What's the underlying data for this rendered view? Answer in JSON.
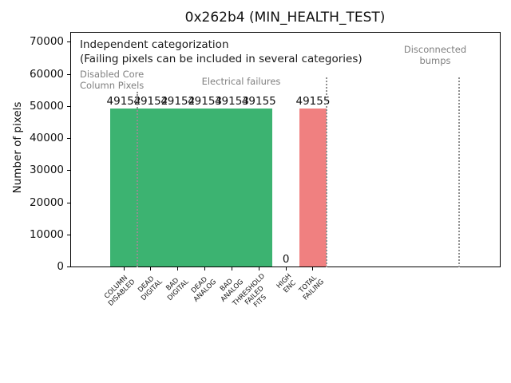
{
  "figure": {
    "background": "#ffffff"
  },
  "colors": {
    "bar_green": "#3cb371",
    "bar_red": "#f08080",
    "annotation_gray": "#808080",
    "separator_gray": "#909090",
    "axis_black": "#000000"
  },
  "chart_data": {
    "type": "bar",
    "title": "0x262b4 (MIN_HEALTH_TEST)",
    "ylabel": "Number of pixels",
    "xlabel": "",
    "ylim": [
      0,
      73300
    ],
    "yticks": [
      0,
      10000,
      20000,
      30000,
      40000,
      50000,
      60000,
      70000
    ],
    "grid": false,
    "legend": null,
    "categories": [
      "COLUMN\nDISABLED",
      "DEAD\nDIGITAL",
      "BAD\nDIGITAL",
      "DEAD\nANALOG",
      "BAD\nANALOG",
      "THRESHOLD\nFAILED\nFITS",
      "HIGH\nENC",
      "TOTAL\nFAILING"
    ],
    "values": [
      49152,
      49152,
      49152,
      49153,
      49153,
      49155,
      0,
      49155
    ],
    "bar_value_labels": [
      "49152",
      "49152",
      "49152",
      "49153",
      "49153",
      "49155",
      "0",
      "49155"
    ],
    "bar_colors": [
      "#3cb371",
      "#3cb371",
      "#3cb371",
      "#3cb371",
      "#3cb371",
      "#3cb371",
      "#3cb371",
      "#f08080"
    ],
    "annotations": {
      "line1": "Independent categorization",
      "line2": "(Failing pixels can be included in several categories)"
    },
    "group_annotations": [
      {
        "id": "disabled-core-column-pixels",
        "text": "Disabled Core\nColumn Pixels",
        "color": "#808080"
      },
      {
        "id": "electrical-failures",
        "text": "Electrical failures",
        "color": "#808080"
      },
      {
        "id": "disconnected-bumps",
        "text": "Disconnected\nbumps",
        "color": "#808080"
      }
    ],
    "separators_x_in_category_units": [
      0.5,
      7.5,
      12.4
    ]
  }
}
